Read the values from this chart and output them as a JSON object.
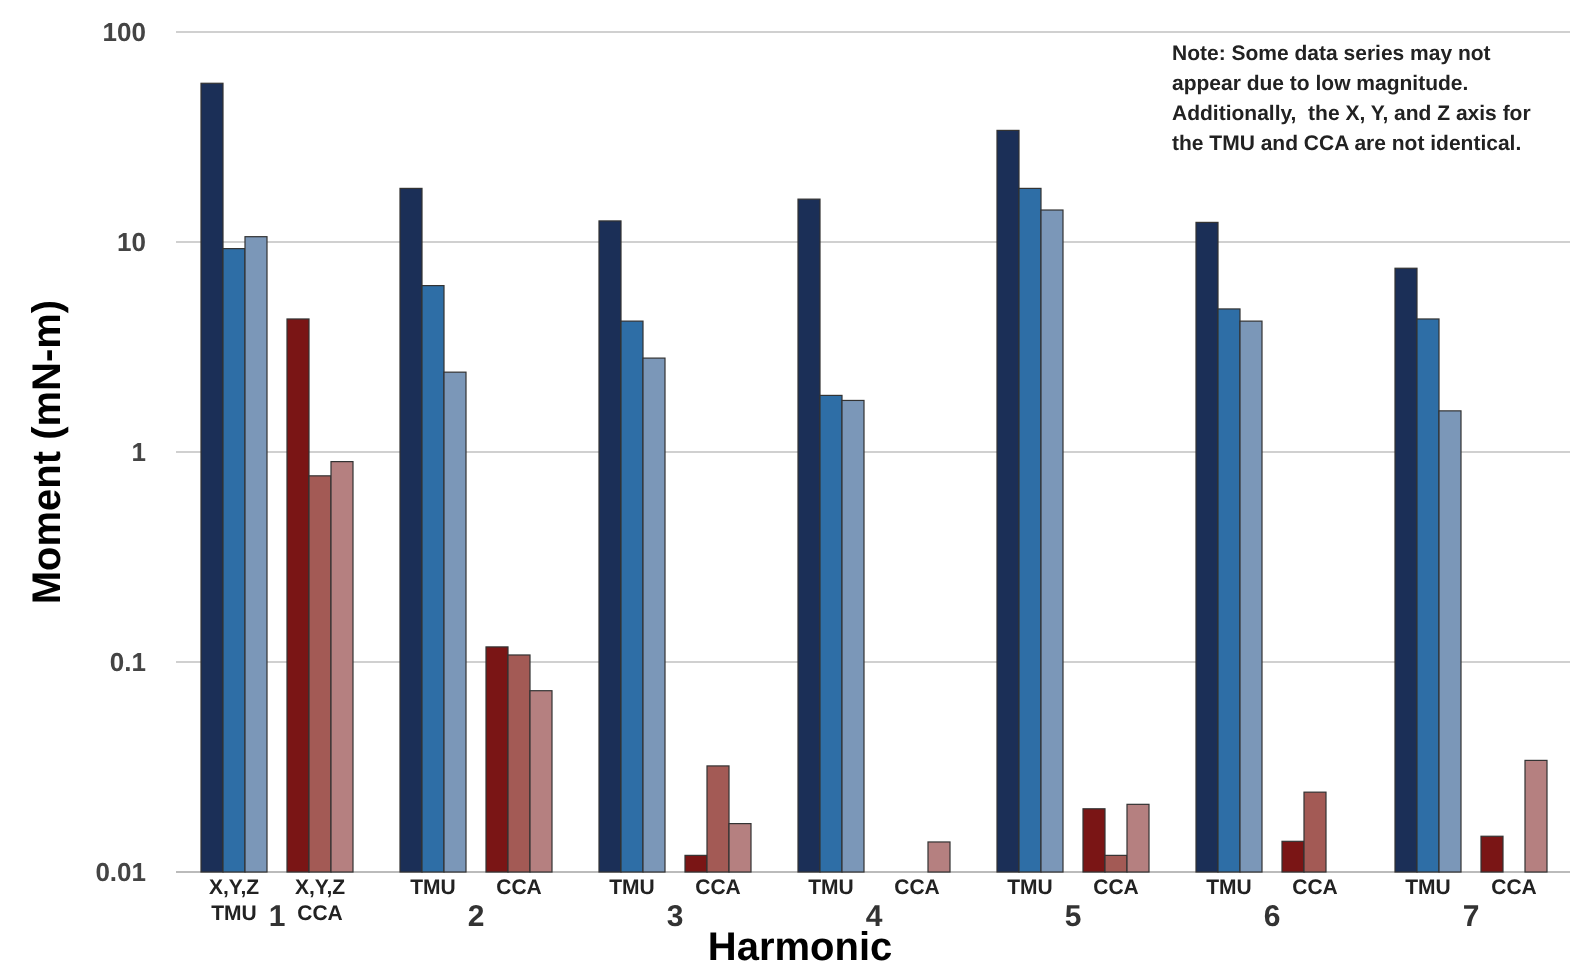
{
  "chart_data": {
    "type": "bar",
    "xlabel": "Harmonic",
    "ylabel": "Moment (mN-m)",
    "categories": [
      "X,Y,Z\nTMU",
      "X,Y,Z\nCCA",
      "TMU",
      "CCA",
      "TMU",
      "CCA",
      "TMU",
      "CCA",
      "TMU",
      "CCA",
      "TMU",
      "CCA",
      "TMU",
      "CCA"
    ],
    "series": [
      {
        "color": "#1b2f57",
        "values": [
          57,
          null,
          18,
          null,
          12.6,
          null,
          16,
          null,
          34,
          null,
          12.4,
          null,
          7.5,
          null
        ]
      },
      {
        "color": "#2e6ea6",
        "values": [
          9.3,
          null,
          6.2,
          null,
          4.2,
          null,
          1.86,
          null,
          18,
          null,
          4.8,
          null,
          4.3,
          null
        ]
      },
      {
        "color": "#7b97b8",
        "values": [
          10.6,
          null,
          2.4,
          null,
          2.8,
          null,
          1.76,
          null,
          14.2,
          null,
          4.2,
          null,
          1.57,
          null
        ]
      },
      {
        "color": "#7a1515",
        "values": [
          null,
          4.3,
          null,
          0.118,
          null,
          0.012,
          null,
          null,
          null,
          0.02,
          null,
          0.014,
          null,
          0.0148
        ]
      },
      {
        "color": "#a35a55",
        "values": [
          null,
          0.77,
          null,
          0.108,
          null,
          0.032,
          null,
          null,
          null,
          0.012,
          null,
          0.024,
          null,
          null
        ]
      },
      {
        "color": "#b58080",
        "values": [
          null,
          0.9,
          null,
          0.073,
          null,
          0.017,
          null,
          0.0139,
          null,
          0.021,
          null,
          null,
          null,
          0.034
        ]
      }
    ],
    "ylim": [
      0.01,
      100
    ],
    "yticks": [
      0.01,
      0.1,
      1,
      10,
      100
    ],
    "log": true,
    "grid": "y",
    "annotations": [
      "1",
      "2",
      "3",
      "4",
      "5",
      "6",
      "7",
      "Note: Some data series may not appear due to low magnitude. Additionally,  the X, Y, and Z axis for the TMU and CCA are not identical."
    ]
  }
}
